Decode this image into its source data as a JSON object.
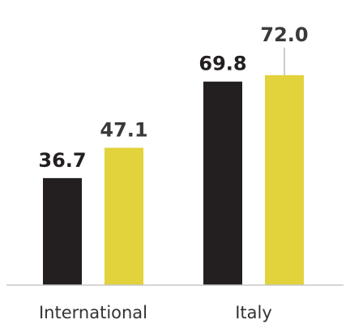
{
  "chart_data": {
    "type": "bar",
    "title": "",
    "xlabel": "",
    "ylabel": "",
    "categories": [
      "International",
      "Italy"
    ],
    "series": [
      {
        "color": "#231f20",
        "values": [
          36.7,
          69.8
        ]
      },
      {
        "color": "#e2d23c",
        "values": [
          47.1,
          72.0
        ]
      }
    ],
    "value_labels": [
      [
        "36.7",
        "69.8"
      ],
      [
        "47.1",
        "72.0"
      ]
    ],
    "value_label_color": "#3a3a3a",
    "ylim": [
      0,
      80
    ],
    "grid": false,
    "legend": "none",
    "axis_color": "#c8c8c8"
  }
}
